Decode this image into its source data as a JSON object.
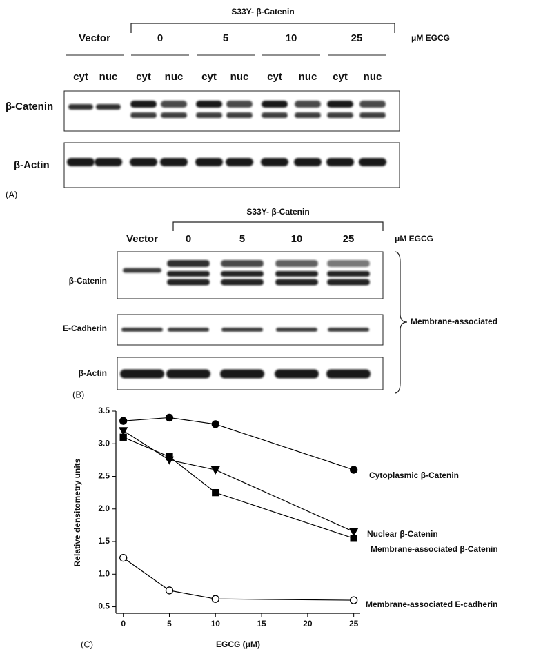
{
  "panel_a": {
    "label": "(A)",
    "construct": "S33Y- β-Catenin",
    "lanes": [
      "Vector",
      "0",
      "5",
      "10",
      "25"
    ],
    "unit": "μM EGCG",
    "fractions": [
      "cyt",
      "nuc",
      "cyt",
      "nuc",
      "cyt",
      "nuc",
      "cyt",
      "nuc",
      "cyt",
      "nuc"
    ],
    "rows": [
      "β-Catenin",
      "β-Actin"
    ]
  },
  "panel_b": {
    "label": "(B)",
    "construct": "S33Y- β-Catenin",
    "lanes": [
      "Vector",
      "0",
      "5",
      "10",
      "25"
    ],
    "unit": "μM EGCG",
    "rows": [
      "β-Catenin",
      "E-Cadherin",
      "β-Actin"
    ],
    "bracket_label": "Membrane-associated"
  },
  "chart_data": {
    "type": "line",
    "label": "(C)",
    "x_label": "EGCG (μM)",
    "y_label": "Relative densitometry units",
    "x": [
      0,
      5,
      10,
      25
    ],
    "xlim": [
      -0.8,
      25.7
    ],
    "xticks": [
      0,
      5,
      10,
      15,
      20,
      25
    ],
    "ylim": [
      0.4,
      3.5
    ],
    "yticks": [
      0.5,
      {
        "value": 1,
        "label": "1.0"
      },
      1.5,
      {
        "value": 2,
        "label": "2.0"
      },
      2.5,
      {
        "value": 3,
        "label": "3.0"
      },
      3.5
    ],
    "grid": false,
    "series": [
      {
        "name": "Cytoplasmic β-Catenin",
        "color": "#000000",
        "marker": "circle",
        "filled": true,
        "values": [
          3.35,
          3.4,
          3.3,
          2.6
        ]
      },
      {
        "name": "Nuclear β-Catenin",
        "color": "#000000",
        "marker": "triangle-down",
        "filled": true,
        "values": [
          3.2,
          2.75,
          2.6,
          1.65
        ]
      },
      {
        "name": "Membrane-associated β-Catenin",
        "color": "#000000",
        "marker": "square",
        "filled": true,
        "values": [
          3.1,
          2.8,
          2.25,
          1.55
        ]
      },
      {
        "name": "Membrane-associated E-cadherin",
        "color": "#000000",
        "marker": "circle",
        "filled": false,
        "values": [
          1.25,
          0.75,
          0.62,
          0.6
        ]
      }
    ]
  }
}
